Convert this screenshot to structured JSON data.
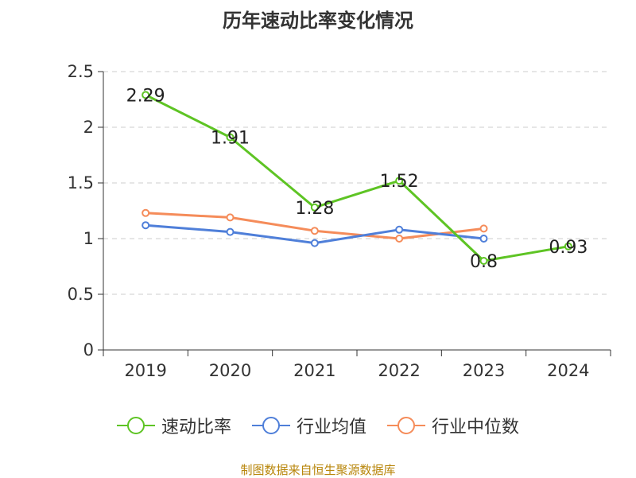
{
  "chart_data": {
    "type": "line",
    "title": "历年速动比率变化情况",
    "categories": [
      "2019",
      "2020",
      "2021",
      "2022",
      "2023",
      "2024"
    ],
    "ylim": [
      0,
      2.5
    ],
    "yticks": [
      "0",
      "0.5",
      "1",
      "1.5",
      "2",
      "2.5"
    ],
    "grid": true,
    "legend_position": "bottom",
    "series": [
      {
        "name": "速动比率",
        "color": "#5ec424",
        "values": [
          2.29,
          1.91,
          1.28,
          1.52,
          0.8,
          0.93
        ],
        "labels": [
          "2.29",
          "1.91",
          "1.28",
          "1.52",
          "0.8",
          "0.93"
        ]
      },
      {
        "name": "行业均值",
        "color": "#4f7fd9",
        "values": [
          1.12,
          1.06,
          0.96,
          1.08,
          1.0,
          null
        ]
      },
      {
        "name": "行业中位数",
        "color": "#f58c5a",
        "values": [
          1.23,
          1.19,
          1.07,
          1.0,
          1.09,
          null
        ]
      }
    ]
  },
  "source": "制图数据来自恒生聚源数据库"
}
